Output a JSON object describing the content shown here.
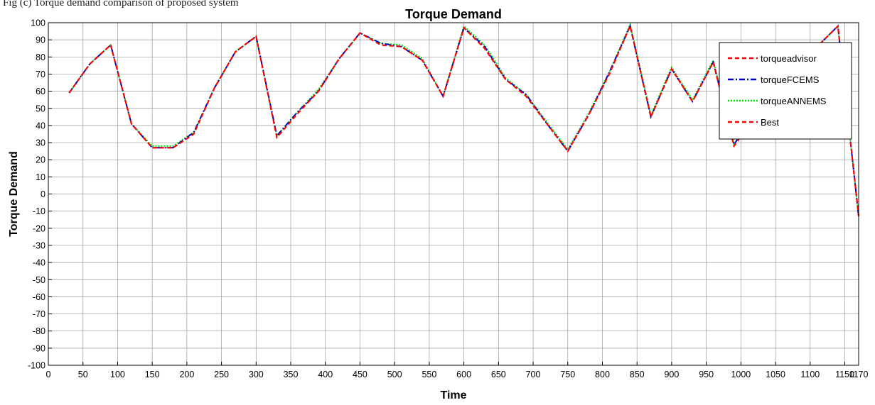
{
  "caption": "Fig (c) Torque demand comparison of proposed system",
  "chart_data": {
    "type": "line",
    "title": "Torque Demand",
    "xlabel": "Time",
    "ylabel": "Torque Demand",
    "xlim": [
      0,
      1170
    ],
    "ylim": [
      -100,
      100
    ],
    "xticks": [
      0,
      50,
      100,
      150,
      200,
      250,
      300,
      350,
      400,
      450,
      500,
      550,
      600,
      650,
      700,
      750,
      800,
      850,
      900,
      950,
      1000,
      1050,
      1100,
      1150,
      1170
    ],
    "xtick_labels": [
      "0",
      "50",
      "100",
      "150",
      "200",
      "250",
      "300",
      "350",
      "400",
      "450",
      "500",
      "550",
      "600",
      "650",
      "700",
      "750",
      "800",
      "850",
      "900",
      "950",
      "1000",
      "1050",
      "1100",
      "1150",
      "1170"
    ],
    "yticks": [
      100,
      90,
      80,
      70,
      60,
      50,
      40,
      30,
      20,
      10,
      0,
      -10,
      -20,
      -30,
      -40,
      -50,
      -60,
      -70,
      -80,
      -90,
      -100
    ],
    "ytick_labels": [
      "100",
      "90",
      "80",
      "70",
      "60",
      "50",
      "40",
      "30",
      "20",
      "10",
      "0",
      "-10",
      "-20",
      "-30",
      "-40",
      "-50",
      "-60",
      "-70",
      "-80",
      "-90",
      "-100"
    ],
    "grid": true,
    "legend_position": "top-right",
    "x": [
      30,
      60,
      90,
      120,
      150,
      180,
      210,
      240,
      270,
      300,
      330,
      360,
      390,
      420,
      450,
      480,
      510,
      540,
      570,
      600,
      630,
      660,
      690,
      720,
      750,
      780,
      810,
      840,
      870,
      900,
      930,
      960,
      990,
      1020,
      1050,
      1080,
      1110,
      1140,
      1170
    ],
    "series": [
      {
        "name": "torqueadvisor",
        "color": "#ff0000",
        "dash": "6,4",
        "values": [
          59,
          76,
          87,
          41,
          27,
          27,
          35,
          62,
          83,
          92,
          33,
          47,
          60,
          79,
          94,
          87,
          86,
          78,
          57,
          97,
          85,
          67,
          57,
          41,
          25,
          46,
          70,
          98,
          45,
          73,
          54,
          77,
          28,
          45,
          60,
          72,
          86,
          98,
          -13
        ]
      },
      {
        "name": "torqueFCEMS",
        "color": "#0000cc",
        "dash": "8,3,2,3",
        "values": [
          59,
          76,
          87,
          41,
          27,
          27,
          36,
          62,
          83,
          92,
          34,
          48,
          60,
          79,
          94,
          88,
          86,
          78,
          57,
          97,
          86,
          67,
          58,
          41,
          25,
          46,
          71,
          98,
          45,
          73,
          54,
          77,
          29,
          46,
          60,
          72,
          86,
          98,
          -13
        ]
      },
      {
        "name": "torqueANNEMS",
        "color": "#00e000",
        "dash": "2,2",
        "values": [
          59,
          76,
          87,
          41,
          28,
          28,
          36,
          62,
          83,
          92,
          34,
          48,
          61,
          79,
          94,
          88,
          87,
          79,
          57,
          98,
          87,
          68,
          58,
          42,
          26,
          47,
          71,
          99,
          46,
          74,
          55,
          78,
          29,
          46,
          61,
          72,
          86,
          98,
          -13
        ]
      },
      {
        "name": "Best",
        "color": "#ff0000",
        "dash": "6,4",
        "values": [
          59,
          76,
          87,
          41,
          27,
          27,
          35,
          62,
          83,
          92,
          33,
          47,
          60,
          79,
          94,
          87,
          86,
          78,
          57,
          97,
          85,
          67,
          57,
          41,
          25,
          46,
          70,
          98,
          45,
          73,
          54,
          77,
          28,
          45,
          60,
          72,
          86,
          98,
          -13
        ]
      }
    ]
  }
}
